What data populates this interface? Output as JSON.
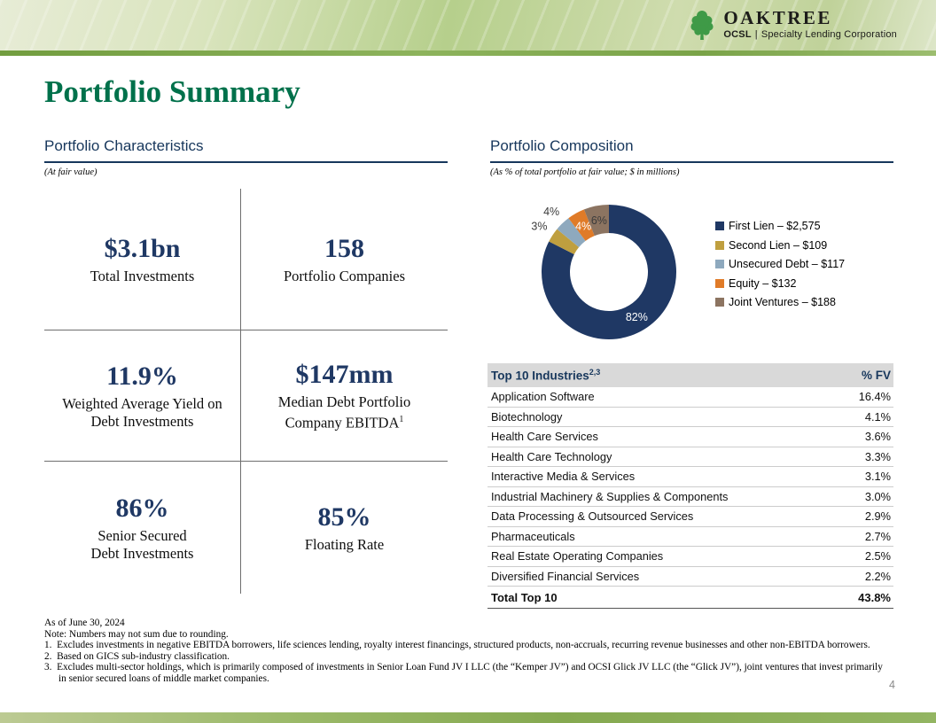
{
  "header": {
    "brand": "OAKTREE",
    "sub_brand_bold": "OCSL",
    "separator": "|",
    "sub_brand_rest": "Specialty Lending Corporation"
  },
  "title": "Portfolio Summary",
  "characteristics": {
    "heading": "Portfolio Characteristics",
    "caption": "(At fair value)",
    "stats": [
      {
        "value": "$3.1bn",
        "label": [
          "Total Investments"
        ]
      },
      {
        "value": "158",
        "label": [
          "Portfolio Companies"
        ]
      },
      {
        "value": "11.9%",
        "label": [
          "Weighted Average Yield on",
          "Debt Investments"
        ]
      },
      {
        "value": "$147mm",
        "label": [
          "Median Debt Portfolio",
          "Company EBITDA"
        ],
        "sup": "1"
      },
      {
        "value": "86%",
        "label": [
          "Senior Secured",
          "Debt Investments"
        ]
      },
      {
        "value": "85%",
        "label": [
          "Floating Rate"
        ]
      }
    ]
  },
  "composition": {
    "heading": "Portfolio Composition",
    "caption": "(As % of total portfolio at fair value; $ in millions)"
  },
  "chart_data": {
    "type": "pie",
    "subtype": "donut",
    "title": "Portfolio Composition",
    "unit": "$ in millions",
    "legend_position": "right",
    "segments": [
      {
        "key": "first-lien",
        "name": "First Lien",
        "amount": 2575,
        "legend": "First Lien – $2,575",
        "pct_label": "82%",
        "color": "#1F3864",
        "label_color": "#FFFFFF",
        "label_radius": 60
      },
      {
        "key": "second-lien",
        "name": "Second Lien",
        "amount": 109,
        "legend": "Second Lien – $109",
        "pct_label": "3%",
        "color": "#BF9F3F",
        "label_color": "#3b3b3b",
        "label_radius": 94
      },
      {
        "key": "unsecured-debt",
        "name": "Unsecured Debt",
        "amount": 117,
        "legend": "Unsecured Debt – $117",
        "pct_label": "4%",
        "color": "#8EA9BE",
        "label_color": "#3b3b3b",
        "label_radius": 94
      },
      {
        "key": "equity",
        "name": "Equity",
        "amount": 132,
        "legend": "Equity – $132",
        "pct_label": "4%",
        "color": "#E07B28",
        "label_color": "#FFFFFF",
        "label_radius": 59
      },
      {
        "key": "joint-ventures",
        "name": "Joint Ventures",
        "amount": 188,
        "legend": "Joint Ventures – $188",
        "pct_label": "6%",
        "color": "#8C7461",
        "label_color": "#3b3b3b",
        "label_radius": 59
      }
    ]
  },
  "industries": {
    "header": {
      "name": "Top 10 Industries",
      "sup": "2,3",
      "value": "% FV"
    },
    "rows": [
      [
        "Application Software",
        "16.4%"
      ],
      [
        "Biotechnology",
        "4.1%"
      ],
      [
        "Health Care Services",
        "3.6%"
      ],
      [
        "Health Care Technology",
        "3.3%"
      ],
      [
        "Interactive Media & Services",
        "3.1%"
      ],
      [
        "Industrial Machinery & Supplies & Components",
        "3.0%"
      ],
      [
        "Data Processing & Outsourced Services",
        "2.9%"
      ],
      [
        "Pharmaceuticals",
        "2.7%"
      ],
      [
        "Real Estate Operating Companies",
        "2.5%"
      ],
      [
        "Diversified Financial Services",
        "2.2%"
      ]
    ],
    "total": {
      "name": "Total Top 10",
      "value": "43.8%"
    }
  },
  "footnotes": [
    "As of June 30, 2024",
    "Note: Numbers may not sum due to rounding.",
    "1.  Excludes investments in negative EBITDA borrowers, life sciences lending, royalty interest financings, structured products, non-accruals, recurring revenue businesses and other non-EBITDA borrowers.",
    "2.  Based on GICS sub-industry classification.",
    "3.  Excludes multi-sector holdings, which is primarily composed of investments in Senior Loan Fund JV I LLC (the “Kemper JV”) and OCSI Glick JV LLC (the “Glick JV”), joint ventures that invest primarily in senior secured loans of middle market companies."
  ],
  "page_number": "4"
}
